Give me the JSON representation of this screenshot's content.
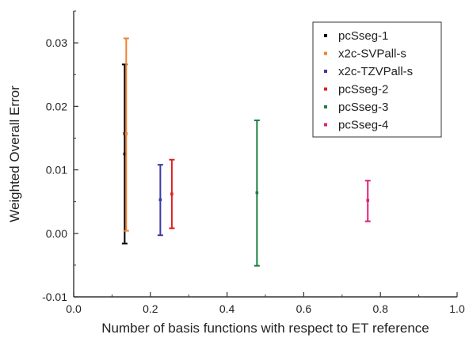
{
  "chart_data": {
    "type": "scatter",
    "title": "",
    "xlabel": "Number of basis functions with respect to ET reference",
    "ylabel": "Weighted Overall Error",
    "xlim": [
      0.0,
      1.0
    ],
    "ylim": [
      -0.01,
      0.035
    ],
    "xticks": [
      0.0,
      0.2,
      0.4,
      0.6,
      0.8,
      1.0
    ],
    "xtick_labels": [
      "0.0",
      "0.2",
      "0.4",
      "0.6",
      "0.8",
      "1.0"
    ],
    "yticks": [
      -0.01,
      0.0,
      0.01,
      0.02,
      0.03
    ],
    "ytick_labels": [
      "-0.01",
      "0.00",
      "0.01",
      "0.02",
      "0.03"
    ],
    "grid": false,
    "legend_position": "top-right",
    "series": [
      {
        "name": "pcSseg-1",
        "color": "#000000",
        "x": 0.133,
        "y": 0.0125,
        "ymin": -0.0016,
        "ymax": 0.0266,
        "extra_marks": [
          0.0157
        ]
      },
      {
        "name": "x2c-SVPall-s",
        "color": "#f08030",
        "x": 0.137,
        "y": 0.0157,
        "ymin": 0.0004,
        "ymax": 0.0307,
        "extra_marks": []
      },
      {
        "name": "x2c-TZVPall-s",
        "color": "#3a3aa8",
        "x": 0.226,
        "y": 0.0053,
        "ymin": -0.0003,
        "ymax": 0.0108,
        "extra_marks": []
      },
      {
        "name": "pcSseg-2",
        "color": "#e02020",
        "x": 0.256,
        "y": 0.0062,
        "ymin": 0.0008,
        "ymax": 0.0116,
        "extra_marks": []
      },
      {
        "name": "pcSseg-3",
        "color": "#1a8040",
        "x": 0.478,
        "y": 0.0064,
        "ymin": -0.0051,
        "ymax": 0.0178,
        "extra_marks": []
      },
      {
        "name": "pcSseg-4",
        "color": "#e0207a",
        "x": 0.767,
        "y": 0.0052,
        "ymin": 0.0019,
        "ymax": 0.0083,
        "extra_marks": []
      }
    ]
  }
}
